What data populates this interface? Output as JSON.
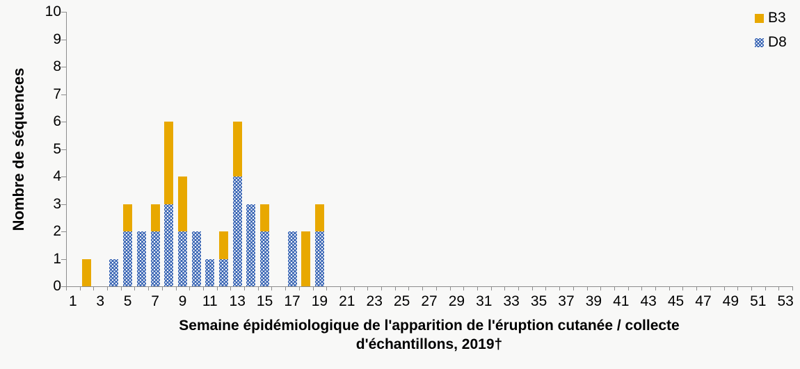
{
  "chart_data": {
    "type": "bar",
    "stacked": true,
    "title": "",
    "ylabel": "Nombre de séquences",
    "xlabel": "Semaine épidémiologique de l'apparition de l'éruption cutanée / collecte d'échantillons, 2019†",
    "xlabel_lines": [
      "Semaine épidémiologique de l'apparition de l'éruption cutanée / collecte",
      "d'échantillons, 2019†"
    ],
    "ylim": [
      0,
      10
    ],
    "yticks": [
      0,
      1,
      2,
      3,
      4,
      5,
      6,
      7,
      8,
      9,
      10
    ],
    "categories": [
      1,
      2,
      3,
      4,
      5,
      6,
      7,
      8,
      9,
      10,
      11,
      12,
      13,
      14,
      15,
      16,
      17,
      18,
      19,
      20,
      21,
      22,
      23,
      24,
      25,
      26,
      27,
      28,
      29,
      30,
      31,
      32,
      33,
      34,
      35,
      36,
      37,
      38,
      39,
      40,
      41,
      42,
      43,
      44,
      45,
      46,
      47,
      48,
      49,
      50,
      51,
      52,
      53
    ],
    "x_labeled_ticks": [
      1,
      3,
      5,
      7,
      9,
      11,
      13,
      15,
      17,
      19,
      21,
      23,
      25,
      27,
      29,
      31,
      33,
      35,
      37,
      39,
      41,
      43,
      45,
      47,
      49,
      51,
      53
    ],
    "grid": false,
    "legend_position": "top-right",
    "series": [
      {
        "name": "B3",
        "color": "#E8A800",
        "pattern": "solid",
        "stack_order": "top",
        "values": [
          0,
          1,
          0,
          0,
          1,
          0,
          1,
          3,
          2,
          0,
          0,
          1,
          2,
          0,
          1,
          0,
          0,
          2,
          1,
          0,
          0,
          0,
          0,
          0,
          0,
          0,
          0,
          0,
          0,
          0,
          0,
          0,
          0,
          0,
          0,
          0,
          0,
          0,
          0,
          0,
          0,
          0,
          0,
          0,
          0,
          0,
          0,
          0,
          0,
          0,
          0,
          0,
          0
        ]
      },
      {
        "name": "D8",
        "color": "#3D68B5",
        "pattern": "white-dots",
        "stack_order": "bottom",
        "values": [
          0,
          0,
          0,
          1,
          2,
          2,
          2,
          3,
          2,
          2,
          1,
          1,
          4,
          3,
          2,
          0,
          2,
          0,
          2,
          0,
          0,
          0,
          0,
          0,
          0,
          0,
          0,
          0,
          0,
          0,
          0,
          0,
          0,
          0,
          0,
          0,
          0,
          0,
          0,
          0,
          0,
          0,
          0,
          0,
          0,
          0,
          0,
          0,
          0,
          0,
          0,
          0,
          0
        ]
      }
    ]
  },
  "colors": {
    "background": "#F8F8F7",
    "axis": "#8C8C8C",
    "text": "#000000"
  }
}
